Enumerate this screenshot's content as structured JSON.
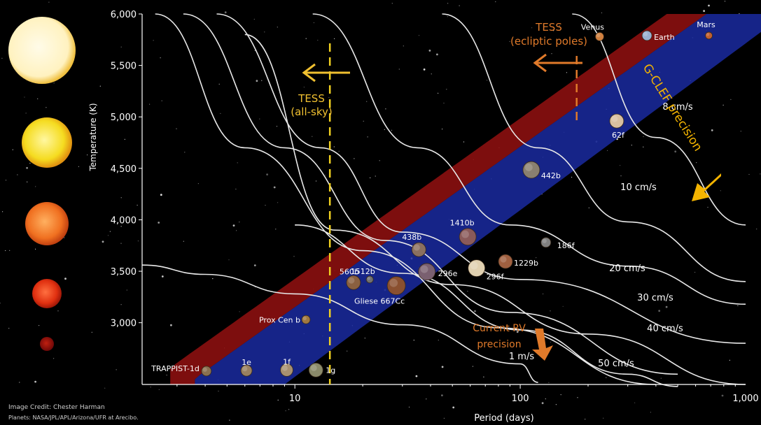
{
  "chart_data": {
    "type": "scatter",
    "xlabel": "Period (days)",
    "ylabel": "Temperature (K)",
    "xscale": "log",
    "xlim": [
      2.1,
      1000
    ],
    "ylim": [
      2400,
      6000
    ],
    "x_ticks": [
      {
        "value": 10,
        "label": "10"
      },
      {
        "value": 100,
        "label": "100"
      },
      {
        "value": 1000,
        "label": "1,000"
      }
    ],
    "y_ticks": [
      {
        "value": 3000,
        "label": "3,000"
      },
      {
        "value": 3500,
        "label": "3,500"
      },
      {
        "value": 4000,
        "label": "4,000"
      },
      {
        "value": 4500,
        "label": "4,500"
      },
      {
        "value": 5000,
        "label": "5,000"
      },
      {
        "value": 5500,
        "label": "5,500"
      },
      {
        "value": 6000,
        "label": "6,000"
      }
    ],
    "planets": [
      {
        "label": "TRAPPIST-1d",
        "x": 4.05,
        "y": 2530,
        "color": "#8a7050",
        "r": 7
      },
      {
        "label": "1e",
        "x": 6.1,
        "y": 2535,
        "color": "#9a8060",
        "r": 8
      },
      {
        "label": "1f",
        "x": 9.2,
        "y": 2540,
        "color": "#a89070",
        "r": 9
      },
      {
        "label": "1g",
        "x": 12.4,
        "y": 2540,
        "color": "#8a8a6a",
        "r": 10
      },
      {
        "label": "Prox Cen b",
        "x": 11.2,
        "y": 3030,
        "color": "#a07840",
        "r": 6
      },
      {
        "label": "560b",
        "x": 18.2,
        "y": 3390,
        "color": "#8a6040",
        "r": 10
      },
      {
        "label": "1512b",
        "x": 21.5,
        "y": 3420,
        "color": "#707070",
        "r": 5
      },
      {
        "label": "Gliese 667Cc",
        "x": 28.2,
        "y": 3360,
        "color": "#8a5030",
        "r": 13
      },
      {
        "label": "296e",
        "x": 38.5,
        "y": 3495,
        "color": "#7a6070",
        "r": 12
      },
      {
        "label": "438b",
        "x": 35.5,
        "y": 3710,
        "color": "#8a7060",
        "r": 10
      },
      {
        "label": "1410b",
        "x": 58.5,
        "y": 3835,
        "color": "#8a5a5a",
        "r": 12
      },
      {
        "label": "296f",
        "x": 64.0,
        "y": 3530,
        "color": "#e0d0b0",
        "r": 12
      },
      {
        "label": "1229b",
        "x": 86.0,
        "y": 3595,
        "color": "#a06040",
        "r": 10
      },
      {
        "label": "186f",
        "x": 130.0,
        "y": 3780,
        "color": "#808080",
        "r": 7
      },
      {
        "label": "442b",
        "x": 112.0,
        "y": 4485,
        "color": "#8a8070",
        "r": 12
      },
      {
        "label": "62f",
        "x": 268.0,
        "y": 4960,
        "color": "#d8c0a0",
        "r": 10
      },
      {
        "label": "Venus",
        "x": 225.0,
        "y": 5780,
        "color": "#d08040",
        "r": 6
      },
      {
        "label": "Earth",
        "x": 365.0,
        "y": 5790,
        "color": "#9ab0d0",
        "r": 7
      },
      {
        "label": "Mars",
        "x": 687.0,
        "y": 5790,
        "color": "#c06030",
        "r": 5
      }
    ],
    "rv_curve_labels": [
      "1 m/s",
      "50 cm/s",
      "40 cm/s",
      "30 cm/s",
      "20 cm/s",
      "10 cm/s",
      "8 cm/s"
    ],
    "annotations": {
      "tess_all_sky": "TESS\n(all-sky)",
      "tess_ecliptic": "TESS\n(ecliptic poles)",
      "gclef": "G-CLEF precision",
      "current_rv": "Current RV\nprecision"
    },
    "tess_all_sky_period": 14.3,
    "tess_ecliptic_period": 178,
    "colors": {
      "background": "#000000",
      "band_red": "#8b1010",
      "band_blue": "#1a2aa0",
      "dashed": "#f0d020",
      "arrow_orange": "#e07a2a",
      "arrow_yellow": "#f4b400"
    }
  },
  "credits": {
    "line1": "Image Credit: Chester Harman",
    "line2": "Planets: NASA/JPL/APL/Arizona/UFR at Arecibo."
  }
}
